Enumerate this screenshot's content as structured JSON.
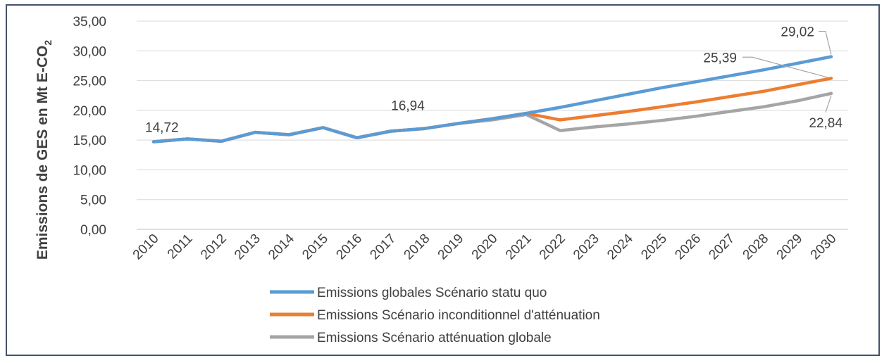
{
  "chart_data": {
    "type": "line",
    "ylabel": "Emissions de GES  en Mt E-CO",
    "ylabel_subscript": "2",
    "ylim": [
      0,
      35
    ],
    "y_ticks": [
      "0,00",
      "5,00",
      "10,00",
      "15,00",
      "20,00",
      "25,00",
      "30,00",
      "35,00"
    ],
    "grid": true,
    "legend_position": "bottom",
    "categories": [
      "2010",
      "2011",
      "2012",
      "2013",
      "2014",
      "2015",
      "2016",
      "2017",
      "2018",
      "2019",
      "2020",
      "2021",
      "2022",
      "2023",
      "2024",
      "2025",
      "2026",
      "2027",
      "2028",
      "2029",
      "2030"
    ],
    "series": [
      {
        "name": "Emissions globales Scénario statu quo",
        "color": "#5b9bd5",
        "values": [
          14.72,
          15.2,
          14.8,
          16.3,
          15.9,
          17.1,
          15.4,
          16.5,
          16.94,
          17.8,
          18.6,
          19.5,
          20.5,
          21.6,
          22.7,
          23.8,
          24.8,
          25.8,
          26.8,
          27.9,
          29.02
        ]
      },
      {
        "name": "Emissions Scénario inconditionnel d'atténuation",
        "color": "#ed7d31",
        "values": [
          14.72,
          15.2,
          14.8,
          16.3,
          15.9,
          17.1,
          15.4,
          16.5,
          16.94,
          17.8,
          18.6,
          19.5,
          18.4,
          19.1,
          19.8,
          20.6,
          21.4,
          22.3,
          23.2,
          24.3,
          25.39
        ]
      },
      {
        "name": "Emissions Scénario atténuation globale",
        "color": "#a5a5a5",
        "values": [
          14.72,
          15.2,
          14.8,
          16.3,
          15.9,
          17.1,
          15.4,
          16.5,
          16.94,
          17.8,
          18.4,
          19.3,
          16.6,
          17.2,
          17.7,
          18.3,
          19.0,
          19.8,
          20.6,
          21.6,
          22.84
        ]
      }
    ],
    "data_labels": [
      "14,72",
      "16,94",
      "29,02",
      "25,39",
      "22,84"
    ]
  }
}
